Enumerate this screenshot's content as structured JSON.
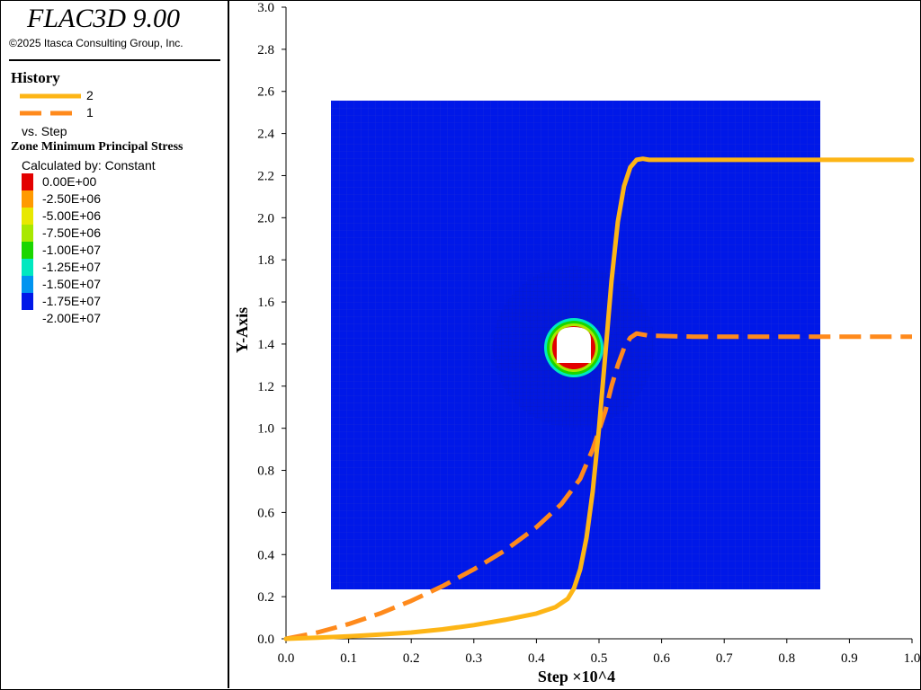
{
  "app": {
    "title": "FLAC3D 9.00",
    "copyright": "©2025 Itasca Consulting Group, Inc."
  },
  "history_legend": {
    "title": "History",
    "vs_label": "vs. Step",
    "entries": [
      {
        "label": "2",
        "color": "#FDB516",
        "style": "solid"
      },
      {
        "label": "1",
        "color": "#FF8A1C",
        "style": "dashed"
      }
    ]
  },
  "zone_legend": {
    "title": "Zone Minimum Principal Stress",
    "calculated_by": "Calculated by: Constant",
    "entries": [
      {
        "label": "0.00E+00",
        "color": "#E30000"
      },
      {
        "label": "-2.50E+06",
        "color": "#FF9A00"
      },
      {
        "label": "-5.00E+06",
        "color": "#E8E800"
      },
      {
        "label": "-7.50E+06",
        "color": "#A8E800"
      },
      {
        "label": "-1.00E+07",
        "color": "#1BD600"
      },
      {
        "label": "-1.25E+07",
        "color": "#00E8C0"
      },
      {
        "label": "-1.50E+07",
        "color": "#0094F0"
      },
      {
        "label": "-1.75E+07",
        "color": "#0018E8"
      }
    ],
    "extra_entry": {
      "label": "-2.00E+07",
      "color": "#0018E8"
    }
  },
  "chart_data": {
    "type": "line",
    "xlabel": "Step ×10^4",
    "ylabel": "Y-Axis",
    "xlim": [
      0.0,
      1.0
    ],
    "ylim": [
      0.0,
      3.0
    ],
    "x_ticks": [
      "0.0",
      "0.1",
      "0.2",
      "0.3",
      "0.4",
      "0.5",
      "0.6",
      "0.7",
      "0.8",
      "0.9",
      "1.0"
    ],
    "y_ticks": [
      "0.0",
      "0.2",
      "0.4",
      "0.6",
      "0.8",
      "1.0",
      "1.2",
      "1.4",
      "1.6",
      "1.8",
      "2.0",
      "2.2",
      "2.4",
      "2.6",
      "2.8",
      "3.0"
    ],
    "grid": false,
    "background_image": "zone-minimum-principal-stress-contour",
    "series": [
      {
        "name": "2",
        "color": "#FDB516",
        "style": "solid",
        "x": [
          0.0,
          0.05,
          0.1,
          0.15,
          0.2,
          0.25,
          0.3,
          0.35,
          0.4,
          0.43,
          0.45,
          0.46,
          0.47,
          0.48,
          0.49,
          0.5,
          0.51,
          0.52,
          0.53,
          0.54,
          0.55,
          0.56,
          0.57,
          0.58,
          0.65,
          0.8,
          1.0
        ],
        "y": [
          0.0,
          0.005,
          0.012,
          0.02,
          0.03,
          0.045,
          0.065,
          0.09,
          0.12,
          0.15,
          0.19,
          0.24,
          0.33,
          0.48,
          0.7,
          1.0,
          1.35,
          1.7,
          1.98,
          2.15,
          2.24,
          2.275,
          2.28,
          2.275,
          2.275,
          2.275,
          2.275
        ]
      },
      {
        "name": "1",
        "color": "#FF8A1C",
        "style": "dashed",
        "x": [
          0.0,
          0.05,
          0.1,
          0.15,
          0.2,
          0.25,
          0.3,
          0.35,
          0.4,
          0.44,
          0.47,
          0.49,
          0.51,
          0.52,
          0.53,
          0.54,
          0.55,
          0.56,
          0.58,
          0.65,
          0.8,
          1.0
        ],
        "y": [
          0.0,
          0.03,
          0.07,
          0.12,
          0.18,
          0.25,
          0.33,
          0.42,
          0.53,
          0.64,
          0.76,
          0.9,
          1.08,
          1.2,
          1.3,
          1.38,
          1.43,
          1.45,
          1.44,
          1.435,
          1.435,
          1.435
        ]
      }
    ]
  }
}
